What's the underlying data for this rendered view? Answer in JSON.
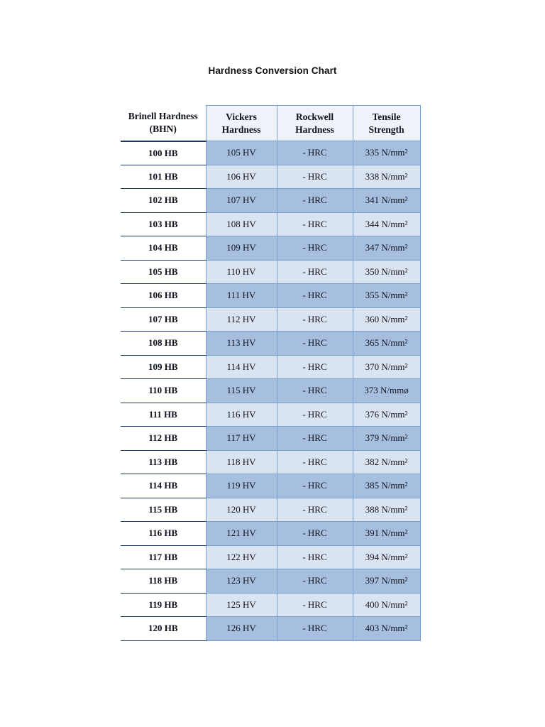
{
  "page": {
    "title": "Hardness Conversion Chart"
  },
  "table": {
    "headers": [
      "Brinell Hardness (BHN)",
      "Vickers Hardness",
      "Rockwell Hardness",
      "Tensile Strength"
    ],
    "rows": [
      [
        "100 HB",
        "105 HV",
        "- HRC",
        "335 N/mm²"
      ],
      [
        "101 HB",
        "106 HV",
        "- HRC",
        "338 N/mm²"
      ],
      [
        "102 HB",
        "107 HV",
        "- HRC",
        "341 N/mm²"
      ],
      [
        "103 HB",
        "108 HV",
        "- HRC",
        "344 N/mm²"
      ],
      [
        "104 HB",
        "109 HV",
        "- HRC",
        "347 N/mm²"
      ],
      [
        "105 HB",
        "110 HV",
        "- HRC",
        "350 N/mm²"
      ],
      [
        "106 HB",
        "111 HV",
        "- HRC",
        "355 N/mm²"
      ],
      [
        "107 HB",
        "112 HV",
        "- HRC",
        "360 N/mm²"
      ],
      [
        "108 HB",
        "113 HV",
        "- HRC",
        "365 N/mm²"
      ],
      [
        "109 HB",
        "114 HV",
        "- HRC",
        "370 N/mm²"
      ],
      [
        "110 HB",
        "115 HV",
        "- HRC",
        "373 N/mmø"
      ],
      [
        "111 HB",
        "116 HV",
        "- HRC",
        "376 N/mm²"
      ],
      [
        "112 HB",
        "117 HV",
        "- HRC",
        "379 N/mm²"
      ],
      [
        "113 HB",
        "118 HV",
        "- HRC",
        "382 N/mm²"
      ],
      [
        "114 HB",
        "119 HV",
        "- HRC",
        "385 N/mm²"
      ],
      [
        "115 HB",
        "120 HV",
        "- HRC",
        "388 N/mm²"
      ],
      [
        "116 HB",
        "121 HV",
        "- HRC",
        "391 N/mm²"
      ],
      [
        "117 HB",
        "122 HV",
        "- HRC",
        "394 N/mm²"
      ],
      [
        "118 HB",
        "123 HV",
        "- HRC",
        "397 N/mm²"
      ],
      [
        "119 HB",
        "125 HV",
        "- HRC",
        "400 N/mm²"
      ],
      [
        "120 HB",
        "126 HV",
        "- HRC",
        "403 N/mm²"
      ]
    ]
  },
  "colors": {
    "band_dark": "#a6bfde",
    "band_light": "#dae4f1",
    "cell_border": "#7ba0cd",
    "row_line": "#1f3864",
    "header_bg": "#eef3fa",
    "text": "#10131f"
  }
}
